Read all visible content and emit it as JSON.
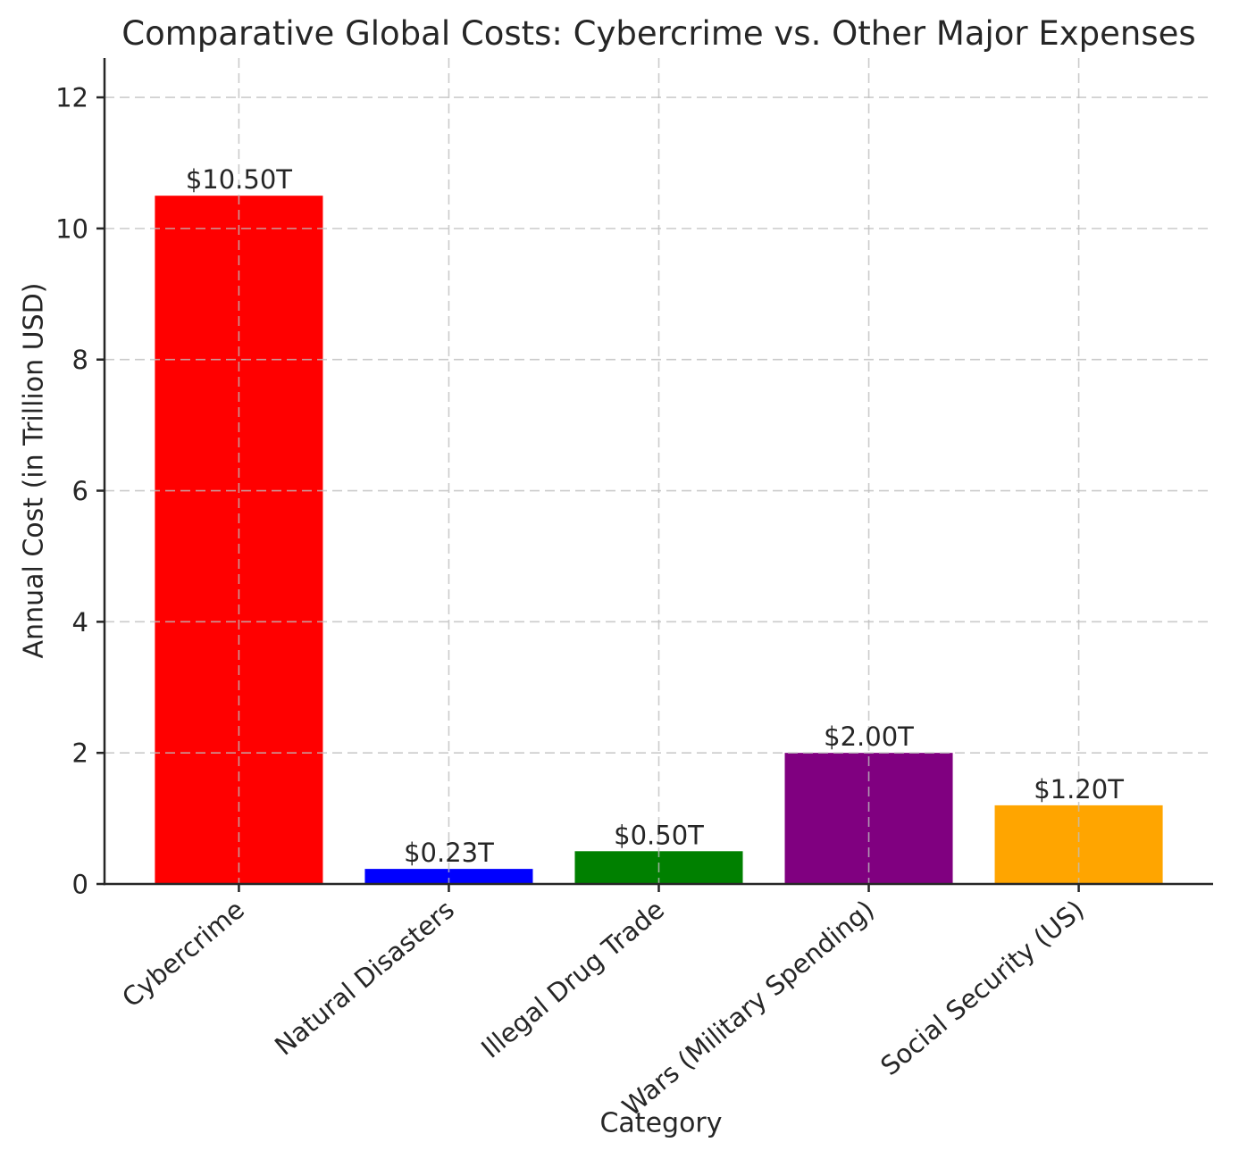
{
  "chart_data": {
    "type": "bar",
    "title": "Comparative Global Costs: Cybercrime vs. Other Major Expenses",
    "xlabel": "Category",
    "ylabel": "Annual Cost (in Trillion USD)",
    "categories": [
      "Cybercrime",
      "Natural Disasters",
      "Illegal Drug Trade",
      "Wars (Military Spending)",
      "Social Security (US)"
    ],
    "values": [
      10.5,
      0.23,
      0.5,
      2.0,
      1.2
    ],
    "bar_value_labels": [
      "$10.50T",
      "$0.23T",
      "$0.50T",
      "$2.00T",
      "$1.20T"
    ],
    "bar_colors": [
      "#ff0000",
      "#0000ff",
      "#008000",
      "#800080",
      "#ffa500"
    ],
    "yticks": [
      0,
      2,
      4,
      6,
      8,
      10,
      12
    ],
    "ylim": [
      0,
      12.6
    ],
    "x_tick_rotation_deg": 40,
    "grid": {
      "style": "dashed",
      "axes": "both",
      "color": "#bfbfbf",
      "above_bars": true
    },
    "legend": "none",
    "spine_color": "#262626",
    "text_color": "#262626",
    "background_color": "#ffffff"
  }
}
